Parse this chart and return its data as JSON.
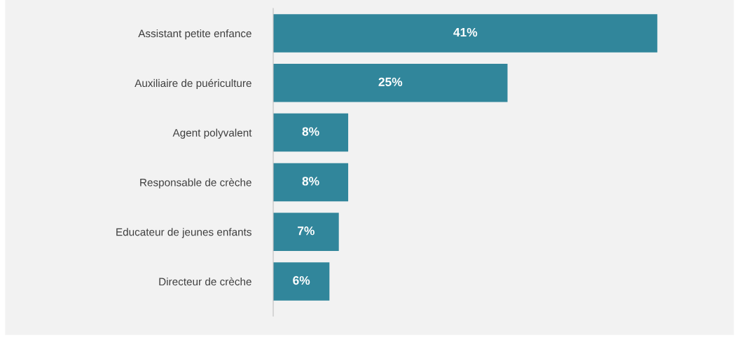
{
  "chart_data": {
    "type": "bar",
    "orientation": "horizontal",
    "categories": [
      "Assistant petite enfance",
      "Auxiliaire de puériculture",
      "Agent polyvalent",
      "Responsable de crèche",
      "Educateur de jeunes enfants",
      "Directeur de crèche"
    ],
    "values": [
      41,
      25,
      8,
      8,
      7,
      6
    ],
    "value_labels": [
      "41%",
      "25%",
      "8%",
      "8%",
      "7%",
      "6%"
    ],
    "color": "#31869b",
    "grid": false,
    "legend": false
  }
}
